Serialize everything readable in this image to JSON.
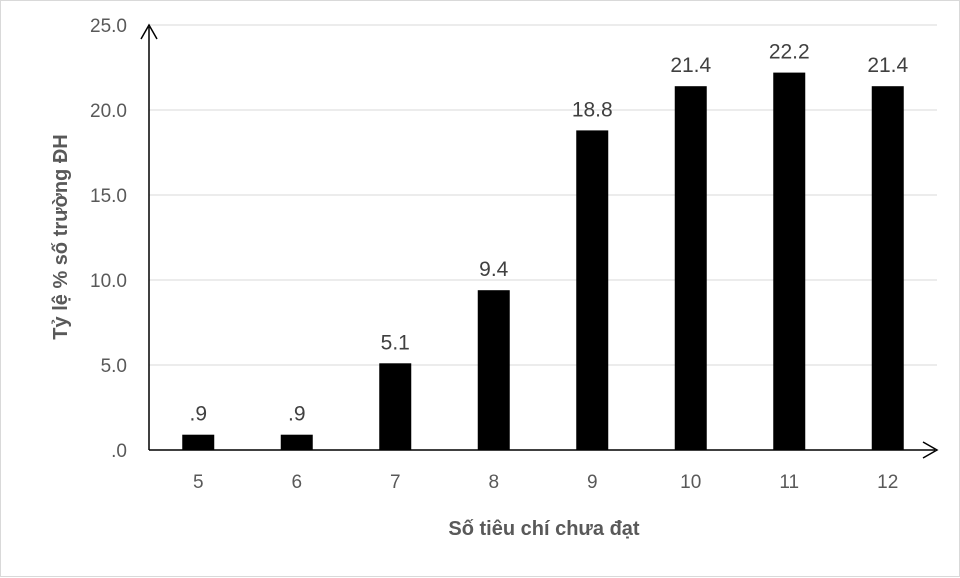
{
  "chart_data": {
    "type": "bar",
    "title": "",
    "xlabel": "Số tiêu chí chưa đạt",
    "ylabel": "Tỷ lệ % số trường ĐH",
    "categories": [
      "5",
      "6",
      "7",
      "8",
      "9",
      "10",
      "11",
      "12"
    ],
    "values": [
      0.9,
      0.9,
      5.1,
      9.4,
      18.8,
      21.4,
      22.2,
      21.4
    ],
    "data_labels": [
      ".9",
      ".9",
      "5.1",
      "9.4",
      "18.8",
      "21.4",
      "22.2",
      "21.4"
    ],
    "ylim": [
      0,
      25
    ],
    "yticks": [
      0,
      5,
      10,
      15,
      20,
      25
    ],
    "ytick_labels": [
      ".0",
      "5.0",
      "10.0",
      "15.0",
      "20.0",
      "25.0"
    ],
    "grid": true,
    "legend": "none",
    "bar_color": "#000000",
    "grid_color": "#d9d9d9",
    "axis_color": "#000000"
  }
}
